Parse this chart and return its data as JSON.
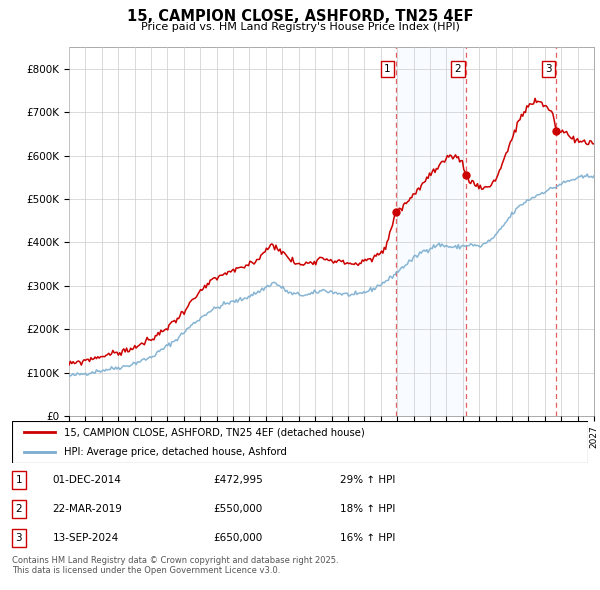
{
  "title": "15, CAMPION CLOSE, ASHFORD, TN25 4EF",
  "subtitle": "Price paid vs. HM Land Registry's House Price Index (HPI)",
  "hpi_label": "HPI: Average price, detached house, Ashford",
  "property_label": "15, CAMPION CLOSE, ASHFORD, TN25 4EF (detached house)",
  "transactions": [
    {
      "num": 1,
      "date": "01-DEC-2014",
      "price": 472995,
      "hpi_pct": "29%",
      "direction": "↑"
    },
    {
      "num": 2,
      "date": "22-MAR-2019",
      "price": 550000,
      "hpi_pct": "18%",
      "direction": "↑"
    },
    {
      "num": 3,
      "date": "13-SEP-2024",
      "price": 650000,
      "hpi_pct": "16%",
      "direction": "↑"
    }
  ],
  "trans_dates_dec": [
    2014.917,
    2019.208,
    2024.708
  ],
  "trans_prices": [
    472995,
    550000,
    650000
  ],
  "footer": "Contains HM Land Registry data © Crown copyright and database right 2025.\nThis data is licensed under the Open Government Licence v3.0.",
  "ylim": [
    0,
    850000
  ],
  "yticks": [
    0,
    100000,
    200000,
    300000,
    400000,
    500000,
    600000,
    700000,
    800000
  ],
  "ytick_labels": [
    "£0",
    "£100K",
    "£200K",
    "£300K",
    "£400K",
    "£500K",
    "£600K",
    "£700K",
    "£800K"
  ],
  "x_start_year": 1995,
  "x_end_year": 2027,
  "background_color": "#ffffff",
  "grid_color": "#cccccc",
  "red_color": "#cc0000",
  "blue_line_color": "#7aadcf",
  "shade_color": "#ddeeff",
  "dashed_color": "#dd4444"
}
